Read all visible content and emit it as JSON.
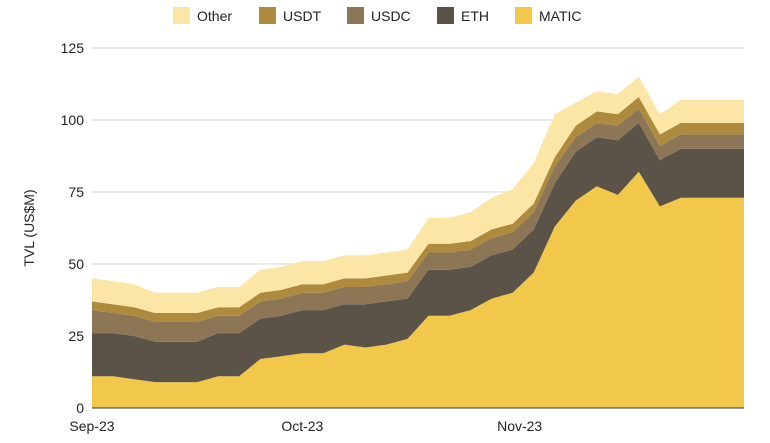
{
  "chart_data": {
    "type": "area",
    "stacked": true,
    "ylabel": "TVL (US$M)",
    "xlabel": "",
    "ylim": [
      0,
      125
    ],
    "y_ticks": [
      0,
      25,
      50,
      75,
      100,
      125
    ],
    "x_tick_labels": [
      {
        "label": "Sep-23",
        "x": 0
      },
      {
        "label": "Oct-23",
        "x": 30
      },
      {
        "label": "Nov-23",
        "x": 61
      }
    ],
    "x_range": [
      0,
      93
    ],
    "grid": true,
    "legend_position": "top",
    "x": [
      0,
      3,
      6,
      9,
      12,
      15,
      18,
      21,
      24,
      27,
      30,
      33,
      36,
      39,
      42,
      45,
      48,
      51,
      54,
      57,
      60,
      63,
      66,
      69,
      72,
      75,
      78,
      81,
      84,
      87,
      90,
      91,
      93
    ],
    "series": [
      {
        "name": "MATIC",
        "color": "#f2c84b",
        "values": [
          11,
          11,
          10,
          9,
          9,
          9,
          11,
          11,
          17,
          18,
          19,
          19,
          22,
          21,
          22,
          24,
          32,
          32,
          34,
          38,
          40,
          47,
          63,
          72,
          77,
          74,
          82,
          70,
          73,
          73,
          73,
          73,
          73
        ]
      },
      {
        "name": "ETH",
        "color": "#5b5347",
        "values": [
          15,
          15,
          15,
          14,
          14,
          14,
          15,
          15,
          14,
          14,
          15,
          15,
          14,
          15,
          15,
          14,
          16,
          16,
          15,
          15,
          15,
          15,
          15,
          17,
          17,
          19,
          17,
          16,
          17,
          17,
          17,
          17,
          17
        ]
      },
      {
        "name": "USDC",
        "color": "#8c7656",
        "values": [
          8,
          7,
          7,
          7,
          7,
          7,
          6,
          6,
          6,
          6,
          6,
          6,
          6,
          6,
          6,
          6,
          6,
          6,
          6,
          6,
          6,
          6,
          6,
          5,
          5,
          5,
          5,
          5,
          5,
          5,
          5,
          5,
          5
        ]
      },
      {
        "name": "USDT",
        "color": "#ad8a3e",
        "values": [
          3,
          3,
          3,
          3,
          3,
          3,
          3,
          3,
          3,
          3,
          3,
          3,
          3,
          3,
          3,
          3,
          3,
          3,
          3,
          3,
          3,
          3,
          3,
          4,
          4,
          4,
          4,
          4,
          4,
          4,
          4,
          4,
          4
        ]
      },
      {
        "name": "Other",
        "color": "#fbe6a6",
        "values": [
          8,
          8,
          8,
          7,
          7,
          7,
          7,
          7,
          8,
          8,
          8,
          8,
          8,
          8,
          8,
          8,
          9,
          9,
          10,
          11,
          12,
          14,
          15,
          8,
          7,
          7,
          7,
          7,
          8,
          8,
          8,
          8,
          8
        ]
      }
    ],
    "legend_order": [
      "Other",
      "USDT",
      "USDC",
      "ETH",
      "MATIC"
    ]
  }
}
